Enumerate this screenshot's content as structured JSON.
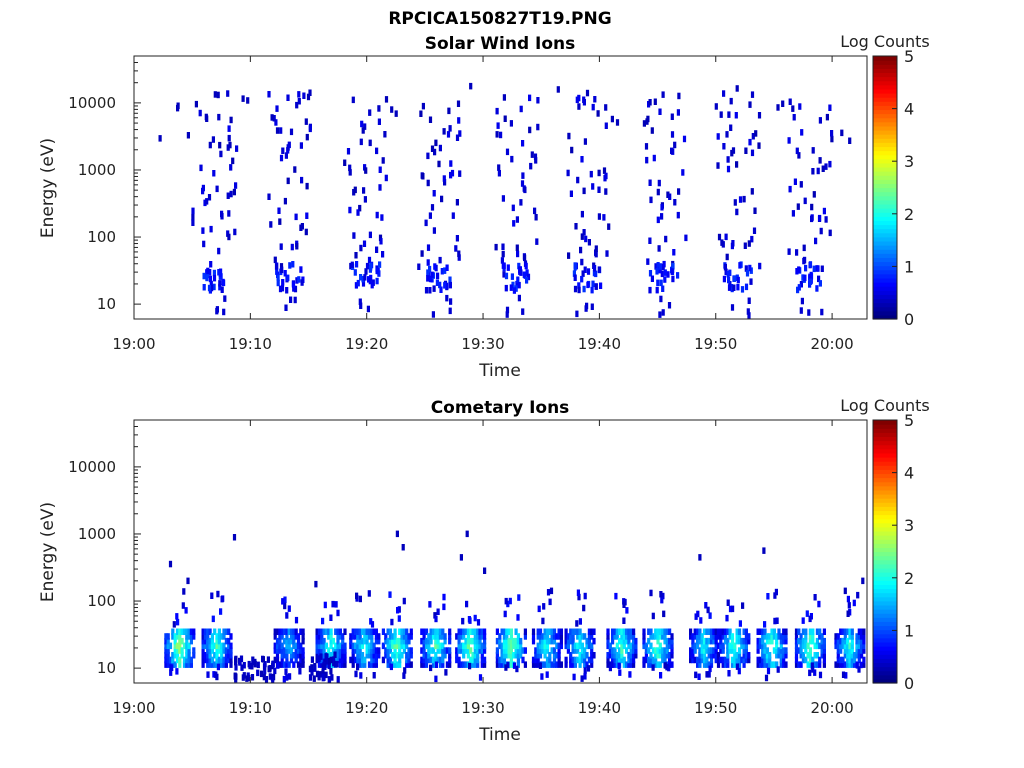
{
  "figure": {
    "title": "RPCICA150827T19.PNG"
  },
  "chart_data": [
    {
      "type": "heatmap",
      "title": "Solar Wind Ions",
      "xlabel": "Time",
      "ylabel": "Energy (eV)",
      "x_ticks": [
        "19:00",
        "19:10",
        "19:20",
        "19:30",
        "19:40",
        "19:50",
        "20:00"
      ],
      "x_range_minutes": [
        0,
        63
      ],
      "y_ticks": [
        "10",
        "100",
        "1000",
        "10000"
      ],
      "y_scale": "log",
      "y_range": [
        6,
        50000
      ],
      "colorbar": {
        "label": "Log Counts",
        "ticks": [
          "0",
          "1",
          "2",
          "3",
          "4",
          "5"
        ],
        "range": [
          0,
          5
        ],
        "colormap": "jet"
      },
      "bursts": [
        {
          "t": 6.8,
          "lo_band_log": 0.8
        },
        {
          "t": 13.2,
          "lo_band_log": 1.0
        },
        {
          "t": 19.8,
          "lo_band_log": 1.2
        },
        {
          "t": 26.2,
          "lo_band_log": 1.1
        },
        {
          "t": 32.8,
          "lo_band_log": 1.2
        },
        {
          "t": 38.9,
          "lo_band_log": 1.2
        },
        {
          "t": 45.4,
          "lo_band_log": 1.0
        },
        {
          "t": 51.8,
          "lo_band_log": 1.3
        },
        {
          "t": 58.0,
          "lo_band_log": 1.2
        }
      ]
    },
    {
      "type": "heatmap",
      "title": "Cometary Ions",
      "xlabel": "Time",
      "ylabel": "Energy (eV)",
      "x_ticks": [
        "19:00",
        "19:10",
        "19:20",
        "19:30",
        "19:40",
        "19:50",
        "20:00"
      ],
      "x_range_minutes": [
        0,
        63
      ],
      "y_ticks": [
        "10",
        "100",
        "1000",
        "10000"
      ],
      "y_scale": "log",
      "y_range": [
        6,
        50000
      ],
      "colorbar": {
        "label": "Log Counts",
        "ticks": [
          "0",
          "1",
          "2",
          "3",
          "4",
          "5"
        ],
        "range": [
          0,
          5
        ],
        "colormap": "jet"
      },
      "bursts": [
        {
          "t": 3.8,
          "peak_log": 2.6
        },
        {
          "t": 7.0,
          "peak_log": 2.2
        },
        {
          "t": 13.2,
          "peak_log": 1.6
        },
        {
          "t": 16.8,
          "peak_log": 2.1
        },
        {
          "t": 19.7,
          "peak_log": 2.0
        },
        {
          "t": 22.5,
          "peak_log": 2.4
        },
        {
          "t": 25.8,
          "peak_log": 2.2
        },
        {
          "t": 28.8,
          "peak_log": 2.4
        },
        {
          "t": 32.3,
          "peak_log": 2.6
        },
        {
          "t": 35.4,
          "peak_log": 2.0
        },
        {
          "t": 38.2,
          "peak_log": 2.0
        },
        {
          "t": 41.8,
          "peak_log": 2.2
        },
        {
          "t": 44.9,
          "peak_log": 2.3
        },
        {
          "t": 48.9,
          "peak_log": 1.9
        },
        {
          "t": 51.5,
          "peak_log": 2.2
        },
        {
          "t": 54.7,
          "peak_log": 2.3
        },
        {
          "t": 58.0,
          "peak_log": 2.4
        },
        {
          "t": 61.4,
          "peak_log": 2.0
        }
      ]
    }
  ]
}
